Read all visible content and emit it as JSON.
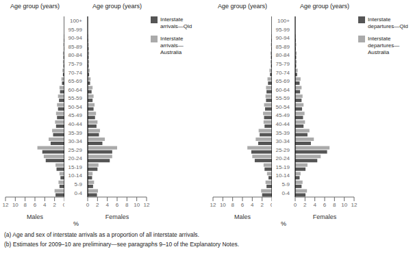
{
  "chart_data": [
    {
      "type": "bar",
      "orientation": "horizontal",
      "title": "Age group (years)",
      "xlabel": "Males",
      "categories": [
        "0-4",
        "5-9",
        "10-14",
        "15-19",
        "20-24",
        "25-29",
        "30-34",
        "35-39",
        "40-44",
        "45-49",
        "50-54",
        "55-59",
        "60-64",
        "65-69",
        "70-74",
        "75-79",
        "80-84",
        "85-89",
        "90-94",
        "95-99",
        "100+"
      ],
      "series": [
        {
          "color": "#555555",
          "values": [
            1.8,
            1.0,
            0.8,
            1.6,
            3.8,
            4.5,
            2.8,
            2.3,
            1.7,
            1.5,
            1.3,
            1.1,
            0.9,
            0.5,
            0.3,
            0.2,
            0.2,
            0.1,
            0.1,
            0.0,
            0.0
          ]
        },
        {
          "color": "#aaaaaa",
          "values": [
            2.0,
            1.2,
            1.0,
            1.8,
            4.2,
            5.5,
            3.2,
            2.5,
            1.9,
            1.7,
            1.5,
            1.3,
            1.0,
            0.6,
            0.4,
            0.3,
            0.3,
            0.2,
            0.1,
            0.0,
            0.0
          ]
        }
      ],
      "xlim": [
        12,
        0
      ],
      "xticks": [
        0,
        2,
        4,
        6,
        8,
        10,
        12
      ],
      "tick_labels": "x",
      "annotations": [
        "%",
        "(a) Age and sex of interstate arrivals as a proportion of all interstate arrivals.",
        "(b) Estimates for 2009–10 are preliminary—see paragraphs 9–10 of the Explanatory Notes."
      ]
    },
    {
      "type": "bar",
      "orientation": "horizontal",
      "title": "Age group (years)",
      "xlabel": "Females",
      "categories": [
        "0-4",
        "5-9",
        "10-14",
        "15-19",
        "20-24",
        "25-29",
        "30-34",
        "35-39",
        "40-44",
        "45-49",
        "50-54",
        "55-59",
        "60-64",
        "65-69",
        "70-74",
        "75-79",
        "80-84",
        "85-89",
        "90-94",
        "95-99",
        "100+"
      ],
      "series": [
        {
          "name": "Interstate\narrivals—Qld",
          "color": "#555555",
          "values": [
            1.9,
            1.1,
            0.9,
            2.0,
            4.5,
            5.0,
            3.0,
            2.3,
            1.8,
            1.5,
            1.2,
            1.0,
            0.8,
            0.5,
            0.3,
            0.2,
            0.2,
            0.2,
            0.1,
            0.0,
            0.0
          ]
        },
        {
          "name": "Interstate\narrivals—\nAustralia",
          "color": "#aaaaaa",
          "values": [
            2.1,
            1.3,
            1.0,
            2.2,
            5.0,
            6.0,
            3.5,
            2.5,
            2.0,
            1.7,
            1.4,
            1.2,
            1.0,
            0.6,
            0.4,
            0.3,
            0.3,
            0.2,
            0.1,
            0.0,
            0.0
          ]
        }
      ],
      "xlim": [
        0,
        12
      ],
      "xticks": [
        0,
        2,
        4,
        6,
        8,
        10,
        12
      ],
      "legend": "right"
    },
    {
      "type": "bar",
      "orientation": "horizontal",
      "title": "Age group (years)",
      "xlabel": "Males",
      "categories": [
        "0-4",
        "5-9",
        "10-14",
        "15-19",
        "20-24",
        "25-29",
        "30-34",
        "35-39",
        "40-44",
        "45-49",
        "50-54",
        "55-59",
        "60-64",
        "65-69",
        "70-74",
        "75-79",
        "80-84",
        "85-89",
        "90-94",
        "95-99",
        "100+"
      ],
      "series": [
        {
          "color": "#555555",
          "values": [
            2.0,
            1.1,
            0.7,
            1.5,
            3.5,
            4.2,
            2.8,
            2.5,
            1.5,
            1.6,
            1.4,
            1.2,
            1.1,
            0.8,
            0.4,
            0.2,
            0.2,
            0.1,
            0.1,
            0.0,
            0.0
          ]
        },
        {
          "color": "#aaaaaa",
          "values": [
            2.2,
            1.3,
            1.0,
            1.7,
            4.0,
            5.0,
            3.3,
            2.7,
            1.7,
            1.8,
            1.6,
            1.3,
            1.2,
            0.9,
            0.5,
            0.3,
            0.3,
            0.2,
            0.1,
            0.0,
            0.0
          ]
        }
      ],
      "xlim": [
        12,
        0
      ],
      "xticks": [
        0,
        2,
        4,
        6,
        8,
        10,
        12
      ],
      "tick_labels": "x",
      "annotations": [
        "%"
      ]
    },
    {
      "type": "bar",
      "orientation": "horizontal",
      "title": "Age group (years)",
      "xlabel": "Females",
      "categories": [
        "0-4",
        "5-9",
        "10-14",
        "15-19",
        "20-24",
        "25-29",
        "30-34",
        "35-39",
        "40-44",
        "45-49",
        "50-54",
        "55-59",
        "60-64",
        "65-69",
        "70-74",
        "75-79",
        "80-84",
        "85-89",
        "90-94",
        "95-99",
        "100+"
      ],
      "series": [
        {
          "name": "Interstate\ndepartures—Qld",
          "color": "#555555",
          "values": [
            2.1,
            1.3,
            0.9,
            2.1,
            4.5,
            6.5,
            3.2,
            2.5,
            1.7,
            1.6,
            1.4,
            1.3,
            1.0,
            0.9,
            0.4,
            0.2,
            0.2,
            0.1,
            0.1,
            0.0,
            0.0
          ]
        },
        {
          "name": "Interstate\ndepartures—\nAustralia",
          "color": "#aaaaaa",
          "values": [
            2.4,
            1.5,
            1.1,
            2.5,
            5.2,
            7.0,
            3.8,
            2.9,
            2.0,
            1.9,
            1.7,
            1.5,
            1.3,
            1.1,
            0.5,
            0.3,
            0.3,
            0.2,
            0.1,
            0.0,
            0.0
          ]
        }
      ],
      "xlim": [
        0,
        12
      ],
      "xticks": [
        0,
        2,
        4,
        6,
        8,
        10,
        12
      ],
      "legend": "right"
    }
  ]
}
